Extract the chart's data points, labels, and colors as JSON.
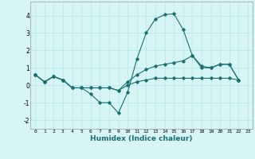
{
  "title": "",
  "xlabel": "Humidex (Indice chaleur)",
  "ylabel": "",
  "bg_color": "#d8f5f5",
  "line_color": "#1a7070",
  "grid_color": "#b8e8e8",
  "xlim": [
    -0.5,
    23.5
  ],
  "ylim": [
    -2.5,
    4.8
  ],
  "xticks": [
    0,
    1,
    2,
    3,
    4,
    5,
    6,
    7,
    8,
    9,
    10,
    11,
    12,
    13,
    14,
    15,
    16,
    17,
    18,
    19,
    20,
    21,
    22,
    23
  ],
  "yticks": [
    -2,
    -1,
    0,
    1,
    2,
    3,
    4
  ],
  "series": [
    {
      "x": [
        0,
        1,
        2,
        3,
        4,
        5,
        6,
        7,
        8,
        9,
        10,
        11,
        12,
        13,
        14,
        15,
        16,
        17,
        18,
        19,
        20,
        21,
        22
      ],
      "y": [
        0.6,
        0.2,
        0.5,
        0.3,
        -0.15,
        -0.15,
        -0.5,
        -1.0,
        -1.0,
        -1.6,
        -0.4,
        1.5,
        3.0,
        3.8,
        4.05,
        4.1,
        3.2,
        1.7,
        1.0,
        1.0,
        1.2,
        1.2,
        0.3
      ]
    },
    {
      "x": [
        0,
        1,
        2,
        3,
        4,
        5,
        6,
        7,
        8,
        9,
        10,
        11,
        12,
        13,
        14,
        15,
        16,
        17,
        18,
        19,
        20,
        21,
        22
      ],
      "y": [
        0.6,
        0.2,
        0.5,
        0.3,
        -0.15,
        -0.15,
        -0.15,
        -0.15,
        -0.15,
        -0.3,
        0.2,
        0.6,
        0.9,
        1.1,
        1.2,
        1.3,
        1.4,
        1.7,
        1.1,
        1.0,
        1.2,
        1.2,
        0.3
      ]
    },
    {
      "x": [
        0,
        1,
        2,
        3,
        4,
        5,
        6,
        7,
        8,
        9,
        10,
        11,
        12,
        13,
        14,
        15,
        16,
        17,
        18,
        19,
        20,
        21,
        22
      ],
      "y": [
        0.6,
        0.2,
        0.5,
        0.3,
        -0.15,
        -0.15,
        -0.15,
        -0.15,
        -0.15,
        -0.3,
        0.0,
        0.2,
        0.3,
        0.4,
        0.4,
        0.4,
        0.4,
        0.4,
        0.4,
        0.4,
        0.4,
        0.4,
        0.3
      ]
    }
  ]
}
